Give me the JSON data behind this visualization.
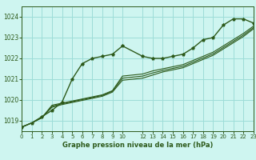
{
  "bg_color": "#cef5f0",
  "grid_color": "#9dddd8",
  "line_color": "#2d5a1b",
  "xlabel": "Graphe pression niveau de la mer (hPa)",
  "xlim": [
    0,
    23
  ],
  "ylim": [
    1018.5,
    1024.5
  ],
  "yticks": [
    1019,
    1020,
    1021,
    1022,
    1023,
    1024
  ],
  "xticks": [
    0,
    1,
    2,
    3,
    4,
    5,
    6,
    7,
    8,
    9,
    10,
    12,
    13,
    14,
    15,
    16,
    17,
    18,
    19,
    20,
    21,
    22,
    23
  ],
  "series": [
    {
      "x": [
        0,
        1,
        2,
        3,
        4,
        5,
        6,
        7,
        8,
        9,
        10,
        12,
        13,
        14,
        15,
        16,
        17,
        18,
        19,
        20,
        21,
        22,
        23
      ],
      "y": [
        1018.7,
        1018.9,
        1019.2,
        1019.5,
        1019.9,
        1021.0,
        1021.75,
        1022.0,
        1022.1,
        1022.2,
        1022.6,
        1022.1,
        1022.0,
        1022.0,
        1022.1,
        1022.2,
        1022.5,
        1022.9,
        1023.0,
        1023.6,
        1023.9,
        1023.9,
        1023.7
      ],
      "marker": true,
      "lw": 1.0,
      "zorder": 4
    },
    {
      "x": [
        0,
        1,
        2,
        3,
        4,
        5,
        6,
        7,
        8,
        9,
        10,
        12,
        13,
        14,
        15,
        16,
        17,
        18,
        19,
        20,
        21,
        22,
        23
      ],
      "y": [
        1018.7,
        1018.9,
        1019.15,
        1019.75,
        1019.85,
        1019.95,
        1020.05,
        1020.15,
        1020.25,
        1020.45,
        1021.15,
        1021.25,
        1021.4,
        1021.5,
        1021.6,
        1021.7,
        1021.9,
        1022.1,
        1022.3,
        1022.6,
        1022.9,
        1023.2,
        1023.55
      ],
      "marker": false,
      "lw": 0.8,
      "zorder": 3
    },
    {
      "x": [
        0,
        1,
        2,
        3,
        4,
        5,
        6,
        7,
        8,
        9,
        10,
        12,
        13,
        14,
        15,
        16,
        17,
        18,
        19,
        20,
        21,
        22,
        23
      ],
      "y": [
        1018.7,
        1018.9,
        1019.15,
        1019.7,
        1019.82,
        1019.92,
        1020.02,
        1020.12,
        1020.22,
        1020.42,
        1021.05,
        1021.15,
        1021.3,
        1021.42,
        1021.52,
        1021.62,
        1021.82,
        1022.02,
        1022.22,
        1022.52,
        1022.82,
        1023.12,
        1023.48
      ],
      "marker": false,
      "lw": 0.8,
      "zorder": 3
    },
    {
      "x": [
        0,
        1,
        2,
        3,
        4,
        5,
        6,
        7,
        8,
        9,
        10,
        12,
        13,
        14,
        15,
        16,
        17,
        18,
        19,
        20,
        21,
        22,
        23
      ],
      "y": [
        1018.7,
        1018.9,
        1019.15,
        1019.65,
        1019.78,
        1019.88,
        1019.98,
        1020.08,
        1020.18,
        1020.38,
        1020.95,
        1021.05,
        1021.2,
        1021.35,
        1021.45,
        1021.55,
        1021.75,
        1021.95,
        1022.15,
        1022.45,
        1022.75,
        1023.05,
        1023.42
      ],
      "marker": false,
      "lw": 0.8,
      "zorder": 2
    }
  ]
}
